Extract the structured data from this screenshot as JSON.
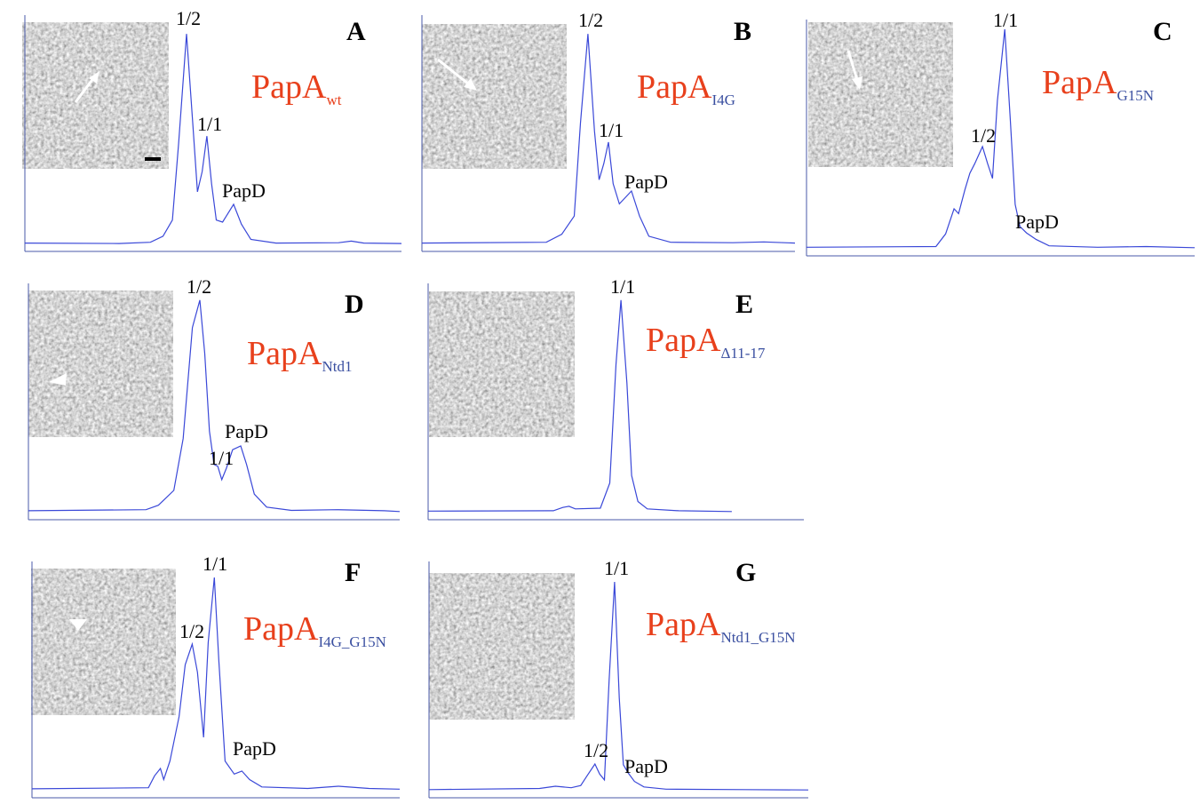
{
  "chart_data": [
    {
      "type": "line",
      "panel": "A",
      "title": "PapA",
      "subscript": "wt",
      "subscript_color": "#e8401c",
      "color": "#3a48d8",
      "x": [
        0,
        30,
        40,
        44,
        47,
        49,
        51.5,
        53.5,
        55,
        56.5,
        58,
        59.5,
        61,
        63,
        66.5,
        69,
        72,
        80,
        100,
        104,
        108,
        120
      ],
      "values": [
        3,
        2,
        5,
        20,
        60,
        250,
        521,
        300,
        130,
        180,
        268,
        150,
        60,
        55,
        99,
        50,
        12,
        3,
        4,
        8,
        3,
        2
      ],
      "xlim": [
        0,
        120
      ],
      "ylim": [
        0,
        550
      ],
      "annotations": [
        "1/2",
        "1/1",
        "PapD"
      ]
    },
    {
      "type": "line",
      "panel": "B",
      "title": "PapA",
      "subscript": "I4G",
      "subscript_color": "#3a4fa0",
      "color": "#3a48d8",
      "x": [
        0,
        40,
        45,
        49,
        51,
        53.4,
        55.5,
        57,
        58.5,
        60,
        61.5,
        63.5,
        67.4,
        70,
        73,
        80,
        100,
        110,
        120
      ],
      "values": [
        3,
        5,
        25,
        70,
        300,
        521,
        280,
        160,
        200,
        253,
        150,
        100,
        132,
        70,
        20,
        5,
        4,
        6,
        3
      ],
      "xlim": [
        0,
        120
      ],
      "ylim": [
        0,
        550
      ],
      "annotations": [
        "1/2",
        "1/1",
        "PapD"
      ]
    },
    {
      "type": "line",
      "panel": "C",
      "title": "PapA",
      "subscript": "G15N",
      "subscript_color": "#3a4fa0",
      "color": "#3a48d8",
      "x": [
        0,
        40,
        43,
        45.6,
        47,
        49,
        50.5,
        52,
        54.4,
        56,
        57.5,
        59,
        61.3,
        63,
        64.5,
        66,
        68,
        71,
        75,
        90,
        105,
        120
      ],
      "values": [
        4,
        6,
        40,
        108,
        95,
        160,
        204,
        230,
        276,
        230,
        190,
        400,
        593,
        350,
        120,
        60,
        43,
        25,
        8,
        4,
        6,
        3
      ],
      "xlim": [
        0,
        120
      ],
      "ylim": [
        0,
        600
      ],
      "annotations": [
        "1/1",
        "1/2",
        "PapD"
      ]
    },
    {
      "type": "line",
      "panel": "D",
      "title": "PapA",
      "subscript": "Ntd1",
      "subscript_color": "#3a4fa0",
      "color": "#3a48d8",
      "x": [
        0,
        38,
        42,
        47,
        50,
        53,
        55.4,
        57,
        58.5,
        60,
        61.2,
        62.5,
        64,
        66,
        68.6,
        70.5,
        73,
        77,
        85,
        100,
        115,
        120
      ],
      "values": [
        5,
        8,
        20,
        60,
        200,
        500,
        574,
        430,
        220,
        130,
        125,
        89,
        120,
        170,
        180,
        130,
        50,
        15,
        6,
        8,
        5,
        3
      ],
      "xlim": [
        0,
        120
      ],
      "ylim": [
        0,
        600
      ],
      "annotations": [
        "1/2",
        "1/1",
        "PapD"
      ]
    },
    {
      "type": "line",
      "panel": "E",
      "title": "PapA",
      "subscript": "Δ11-17",
      "subscript_color": "#3a4fa0",
      "color": "#3a48d8",
      "x": [
        0,
        40,
        43,
        45,
        47,
        55,
        58,
        60,
        61.6,
        63.5,
        65,
        67,
        70,
        80,
        97
      ],
      "values": [
        4,
        5,
        14,
        17,
        10,
        12,
        80,
        400,
        574,
        350,
        100,
        30,
        10,
        5,
        3
      ],
      "xlim": [
        0,
        120
      ],
      "ylim": [
        0,
        600
      ],
      "annotations": [
        "1/1"
      ]
    },
    {
      "type": "line",
      "panel": "F",
      "title": "PapA",
      "subscript": "I4G_G15N",
      "subscript_color": "#3a4fa0",
      "color": "#3a48d8",
      "x": [
        0,
        38,
        40,
        41.9,
        43,
        45,
        48,
        50,
        52.3,
        54,
        56,
        57.5,
        59.5,
        61,
        63,
        66,
        68.5,
        71,
        75,
        90,
        100,
        110,
        120
      ],
      "values": [
        5,
        8,
        40,
        60,
        30,
        80,
        200,
        340,
        396,
        320,
        144,
        400,
        576,
        350,
        80,
        45,
        53,
        30,
        10,
        6,
        12,
        6,
        4
      ],
      "xlim": [
        0,
        120
      ],
      "ylim": [
        0,
        600
      ],
      "annotations": [
        "1/1",
        "1/2",
        "PapD"
      ]
    },
    {
      "type": "line",
      "panel": "G",
      "title": "PapA",
      "subscript": "Ntd1_G15N",
      "subscript_color": "#3a4fa0",
      "color": "#3a48d8",
      "x": [
        0,
        35,
        40,
        45,
        48,
        50,
        52.5,
        54,
        55.5,
        57,
        58.7,
        60.2,
        61.5,
        63,
        65,
        68,
        75,
        100,
        120
      ],
      "values": [
        3,
        6,
        12,
        8,
        14,
        40,
        72,
        45,
        29,
        300,
        564,
        250,
        70,
        48,
        25,
        10,
        4,
        3,
        2
      ],
      "xlim": [
        0,
        120
      ],
      "ylim": [
        0,
        600
      ],
      "annotations": [
        "1/1",
        "1/2",
        "PapD"
      ]
    }
  ]
}
